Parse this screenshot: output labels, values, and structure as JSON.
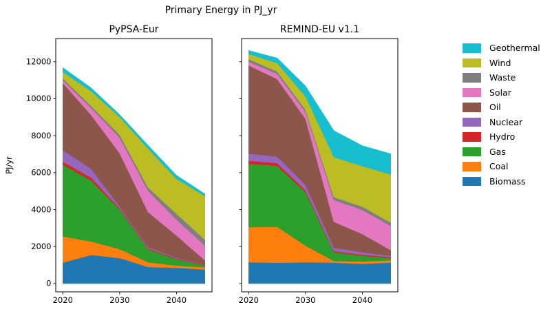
{
  "figure": {
    "title": "Primary Energy in PJ_yr",
    "ylabel": "PJ/yr"
  },
  "legend": {
    "entries": [
      "Geothermal",
      "Wind",
      "Waste",
      "Solar",
      "Oil",
      "Nuclear",
      "Hydro",
      "Gas",
      "Coal",
      "Biomass"
    ]
  },
  "colors": {
    "Geothermal": "#17becf",
    "Wind": "#bcbd22",
    "Waste": "#7f7f7f",
    "Solar": "#e377c2",
    "Oil": "#8c564b",
    "Nuclear": "#9467bd",
    "Hydro": "#d62728",
    "Gas": "#2ca02c",
    "Coal": "#ff7f0e",
    "Biomass": "#1f77b4",
    "axis": "#000000"
  },
  "chart_data": [
    {
      "type": "area",
      "stacked": true,
      "title": "PyPSA-Eur",
      "ylabel": "PJ/yr",
      "x": [
        2020,
        2025,
        2030,
        2035,
        2040,
        2045
      ],
      "xlim": [
        2018.75,
        2046.25
      ],
      "ylim": [
        -450,
        13255
      ],
      "xticks": [
        2020,
        2030,
        2040
      ],
      "yticks": [
        0,
        2000,
        4000,
        6000,
        8000,
        10000,
        12000
      ],
      "show_ytick_labels": true,
      "series": [
        {
          "name": "Biomass",
          "values": [
            1130,
            1550,
            1380,
            900,
            850,
            760
          ]
        },
        {
          "name": "Coal",
          "values": [
            1420,
            720,
            480,
            250,
            120,
            120
          ]
        },
        {
          "name": "Gas",
          "values": [
            3880,
            3300,
            2150,
            700,
            350,
            90
          ]
        },
        {
          "name": "Hydro",
          "values": [
            170,
            160,
            60,
            50,
            40,
            20
          ]
        },
        {
          "name": "Nuclear",
          "values": [
            610,
            480,
            80,
            70,
            40,
            20
          ]
        },
        {
          "name": "Oil",
          "values": [
            3640,
            2900,
            2900,
            1900,
            1200,
            250
          ]
        },
        {
          "name": "Solar",
          "values": [
            150,
            380,
            850,
            1150,
            850,
            800
          ]
        },
        {
          "name": "Waste",
          "values": [
            100,
            110,
            140,
            180,
            330,
            310
          ]
        },
        {
          "name": "Wind",
          "values": [
            350,
            800,
            970,
            2100,
            1880,
            2360
          ]
        },
        {
          "name": "Geothermal",
          "values": [
            230,
            180,
            125,
            180,
            190,
            120
          ]
        }
      ]
    },
    {
      "type": "area",
      "stacked": true,
      "title": "REMIND-EU v1.1",
      "ylabel": "PJ/yr",
      "x": [
        2020,
        2025,
        2030,
        2035,
        2040,
        2045
      ],
      "xlim": [
        2018.75,
        2046.25
      ],
      "ylim": [
        -450,
        13255
      ],
      "xticks": [
        2020,
        2030,
        2040
      ],
      "yticks": [
        0,
        2000,
        4000,
        6000,
        8000,
        10000,
        12000
      ],
      "show_ytick_labels": false,
      "series": [
        {
          "name": "Biomass",
          "values": [
            1150,
            1120,
            1150,
            1130,
            1070,
            1130
          ]
        },
        {
          "name": "Coal",
          "values": [
            1900,
            1950,
            900,
            90,
            120,
            125
          ]
        },
        {
          "name": "Gas",
          "values": [
            3420,
            3300,
            2890,
            470,
            310,
            125
          ]
        },
        {
          "name": "Hydro",
          "values": [
            180,
            150,
            100,
            60,
            60,
            50
          ]
        },
        {
          "name": "Nuclear",
          "values": [
            380,
            350,
            310,
            190,
            130,
            70
          ]
        },
        {
          "name": "Oil",
          "values": [
            4770,
            4200,
            3560,
            1400,
            990,
            310
          ]
        },
        {
          "name": "Solar",
          "values": [
            200,
            280,
            370,
            1180,
            1300,
            1300
          ]
        },
        {
          "name": "Waste",
          "values": [
            140,
            130,
            125,
            150,
            185,
            190
          ]
        },
        {
          "name": "Wind",
          "values": [
            280,
            450,
            720,
            2170,
            2190,
            2600
          ]
        },
        {
          "name": "Geothermal",
          "values": [
            190,
            270,
            560,
            1430,
            1100,
            1120
          ]
        }
      ]
    }
  ]
}
